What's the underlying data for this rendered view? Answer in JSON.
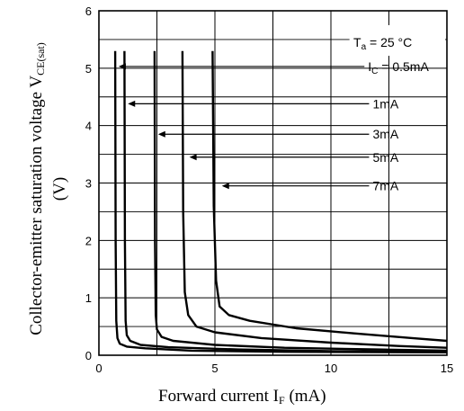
{
  "chart_data": {
    "type": "line",
    "x_label_main": "Forward current I",
    "x_label_sub": "F",
    "x_label_unit": " (mA)",
    "y_label_main": "Collector-emitter saturation voltage V",
    "y_label_sub": "CE(sat)",
    "y_label_unit": "(V)",
    "xlim": [
      0,
      15
    ],
    "ylim": [
      0,
      6
    ],
    "x_ticks": [
      0,
      5,
      10,
      15
    ],
    "y_ticks": [
      0,
      1,
      2,
      3,
      4,
      5,
      6
    ],
    "grid": true,
    "condition": {
      "prefix": "T",
      "sub": "a",
      "suffix": " = 25 °C"
    },
    "series": [
      {
        "name": "I_C = 0.5mA",
        "label_prefix": "I",
        "label_sub": "C",
        "label_suffix": " = 0.5mA",
        "x": [
          0.7,
          0.72,
          0.75,
          0.8,
          0.9,
          1.2,
          2,
          4,
          8,
          15
        ],
        "y": [
          5.3,
          2.0,
          0.6,
          0.3,
          0.2,
          0.15,
          0.12,
          0.08,
          0.06,
          0.05
        ]
      },
      {
        "name": "1mA",
        "label_prefix": "",
        "label_sub": "",
        "label_suffix": "1mA",
        "x": [
          1.1,
          1.12,
          1.15,
          1.2,
          1.35,
          1.8,
          3,
          6,
          10,
          15
        ],
        "y": [
          5.3,
          2.0,
          0.6,
          0.35,
          0.25,
          0.18,
          0.14,
          0.1,
          0.07,
          0.06
        ]
      },
      {
        "name": "3mA",
        "label_prefix": "",
        "label_sub": "",
        "label_suffix": "3mA",
        "x": [
          2.4,
          2.42,
          2.45,
          2.5,
          2.7,
          3.2,
          5,
          8,
          12,
          15
        ],
        "y": [
          5.3,
          2.0,
          0.7,
          0.45,
          0.32,
          0.25,
          0.18,
          0.13,
          0.1,
          0.08
        ]
      },
      {
        "name": "5mA",
        "label_prefix": "",
        "label_sub": "",
        "label_suffix": "5mA",
        "x": [
          3.6,
          3.63,
          3.7,
          3.85,
          4.2,
          5,
          7,
          10,
          13,
          15
        ],
        "y": [
          5.3,
          2.5,
          1.1,
          0.7,
          0.5,
          0.4,
          0.3,
          0.22,
          0.16,
          0.13
        ]
      },
      {
        "name": "7mA",
        "label_prefix": "",
        "label_sub": "",
        "label_suffix": "7mA",
        "x": [
          4.9,
          4.95,
          5.05,
          5.2,
          5.6,
          6.5,
          8.5,
          11,
          13.5,
          15
        ],
        "y": [
          5.3,
          2.6,
          1.3,
          0.85,
          0.7,
          0.6,
          0.47,
          0.38,
          0.3,
          0.25
        ]
      }
    ],
    "annotation_arrows": [
      {
        "series": 0,
        "label_y": 5.03,
        "arrow_x": 0.85
      },
      {
        "series": 1,
        "label_y": 4.38,
        "arrow_x": 1.25
      },
      {
        "series": 2,
        "label_y": 3.85,
        "arrow_x": 2.55
      },
      {
        "series": 3,
        "label_y": 3.45,
        "arrow_x": 3.9
      },
      {
        "series": 4,
        "label_y": 2.95,
        "arrow_x": 5.3
      }
    ]
  }
}
